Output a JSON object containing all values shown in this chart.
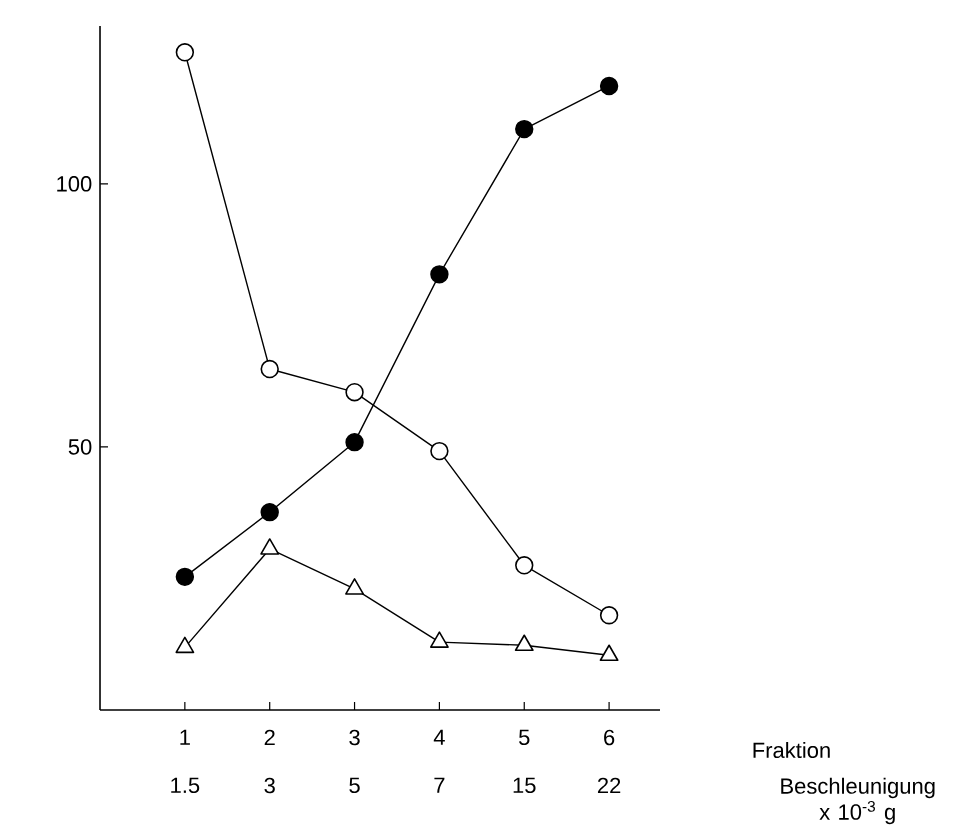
{
  "chart_data": {
    "type": "line",
    "xlabel": "Fraktion",
    "x": [
      1,
      2,
      3,
      4,
      5,
      6
    ],
    "xlim": [
      0,
      6.6
    ],
    "xticks": [
      1,
      2,
      3,
      4,
      5,
      6
    ],
    "ylim": [
      0,
      130
    ],
    "yticks": [
      50,
      100
    ],
    "line_style": "solid",
    "annotations": [
      "1.5",
      "3",
      "5",
      "7",
      "15",
      "22",
      "Beschleunigung x 10$^{-3}$ g"
    ],
    "series": [
      {
        "color": "#ffffff",
        "marker": "circle",
        "values": [
          125,
          64.8,
          60.4,
          49.2,
          27.5,
          18
        ]
      },
      {
        "color": "#000000",
        "marker": "circle",
        "values": [
          25.3,
          37.6,
          50.9,
          82.8,
          110.4,
          118.6
        ]
      },
      {
        "color": "#ffffff",
        "marker": "triangle",
        "values": [
          11.9,
          30.6,
          23,
          12.9,
          12.3,
          10.4
        ]
      }
    ]
  }
}
